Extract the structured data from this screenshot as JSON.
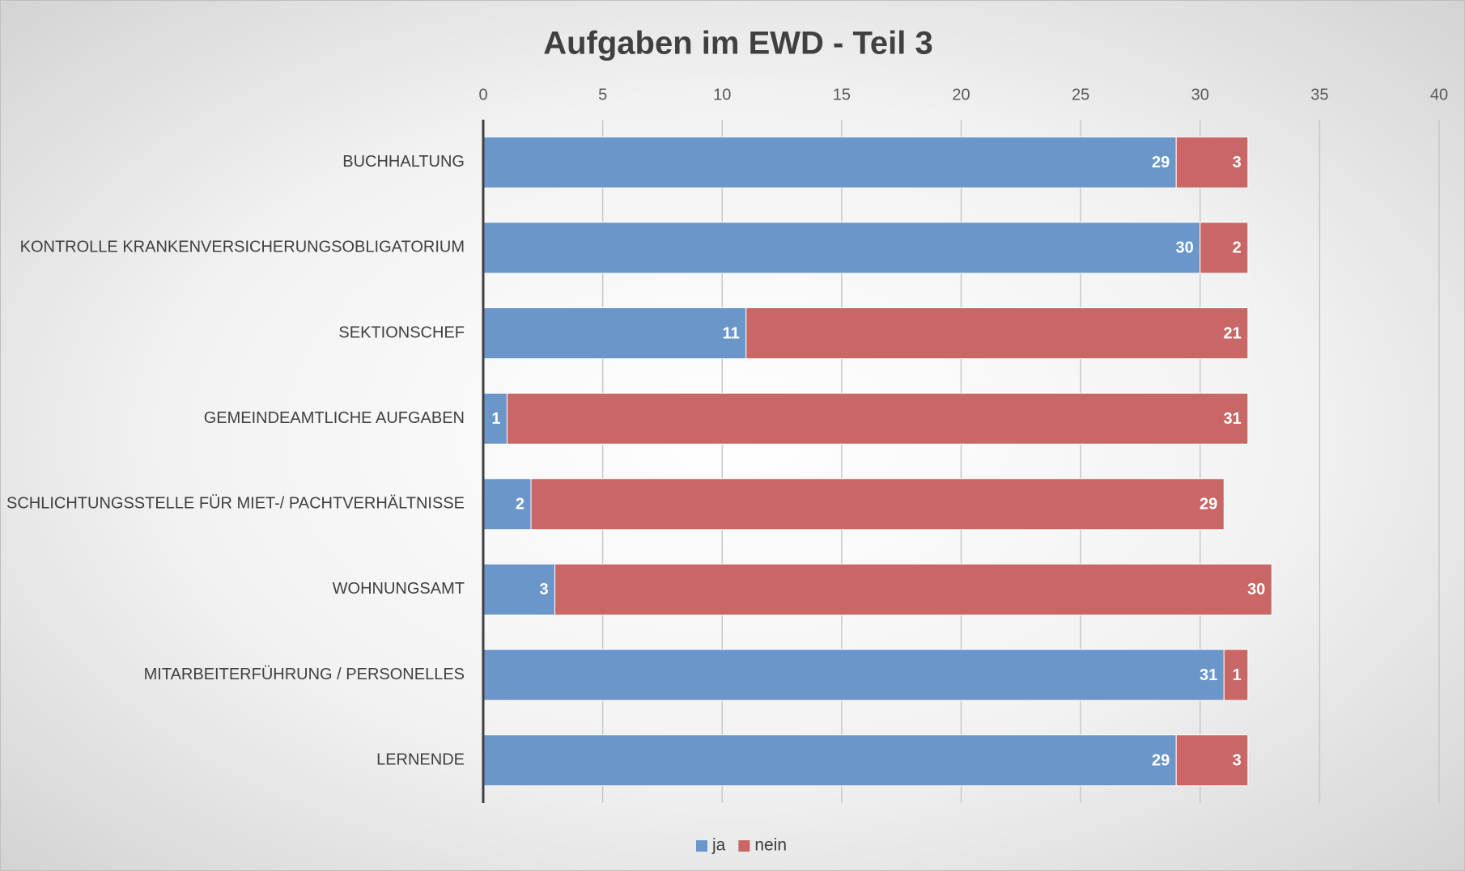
{
  "chart_data": {
    "type": "stacked_barh",
    "title": "Aufgaben im EWD - Teil 3",
    "categories": [
      "BUCHHALTUNG",
      "KONTROLLE KRANKENVERSICHERUNGSOBLIGATORIUM",
      "SEKTIONSCHEF",
      "GEMEINDEAMTLICHE AUFGABEN",
      "SCHLICHTUNGSSTELLE FÜR MIET-/ PACHTVERHÄLTNISSE",
      "WOHNUNGSAMT",
      "MITARBEITERFÜHRUNG / PERSONELLES",
      "LERNENDE"
    ],
    "series": [
      {
        "name": "ja",
        "color": "#6a96c9",
        "values": [
          29,
          30,
          11,
          1,
          2,
          3,
          31,
          29
        ]
      },
      {
        "name": "nein",
        "color": "#c96666",
        "values": [
          3,
          2,
          21,
          31,
          29,
          30,
          1,
          3
        ]
      }
    ],
    "xlim": [
      0,
      40
    ],
    "xticks": [
      0,
      5,
      10,
      15,
      20,
      25,
      30,
      35,
      40
    ],
    "grid": true,
    "legend": "bottom"
  }
}
